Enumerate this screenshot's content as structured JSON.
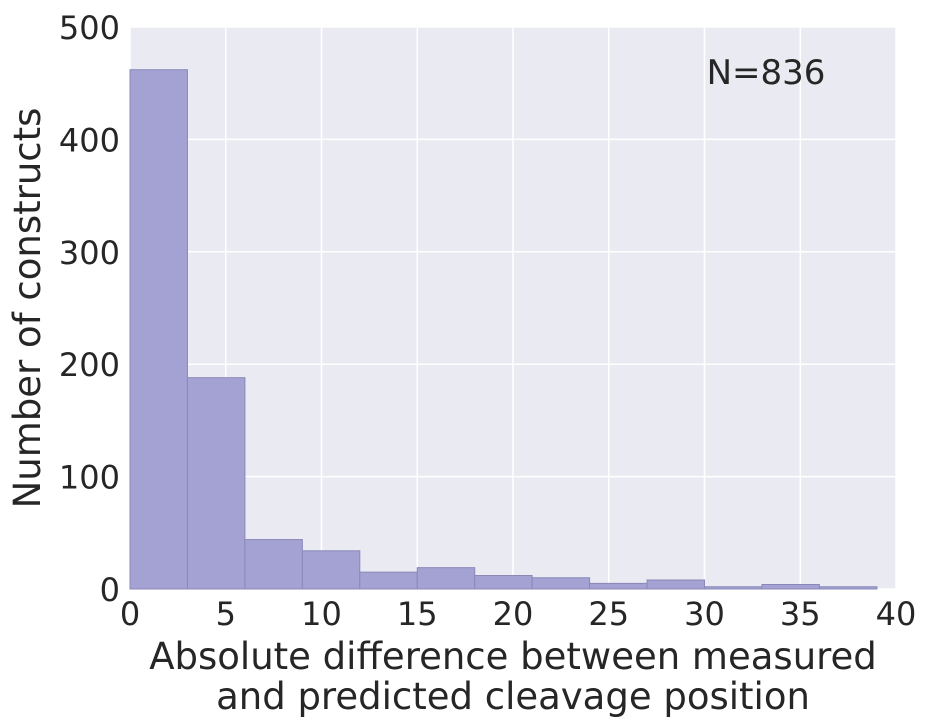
{
  "chart_data": {
    "type": "bar",
    "subtype": "histogram",
    "bin_edges": [
      0,
      3,
      6,
      9,
      12,
      15,
      18,
      21,
      24,
      27,
      30,
      33,
      36,
      39
    ],
    "values": [
      462,
      188,
      44,
      34,
      15,
      19,
      12,
      10,
      5,
      8,
      2,
      4,
      2
    ],
    "xlabel_lines": [
      "Absolute difference between measured",
      "and predicted cleavage position"
    ],
    "ylabel": "Number of constructs",
    "xlim": [
      0,
      40
    ],
    "ylim": [
      0,
      500
    ],
    "xticks": [
      0,
      5,
      10,
      15,
      20,
      25,
      30,
      35,
      40
    ],
    "yticks": [
      0,
      100,
      200,
      300,
      400,
      500
    ],
    "annotation": "N=836",
    "grid": true,
    "legend": "none",
    "colors": {
      "background": "#eaeaf2",
      "grid": "#ffffff",
      "bar_fill": "#a4a2d2",
      "bar_stroke": "#8a88b8",
      "text": "#262626"
    }
  }
}
